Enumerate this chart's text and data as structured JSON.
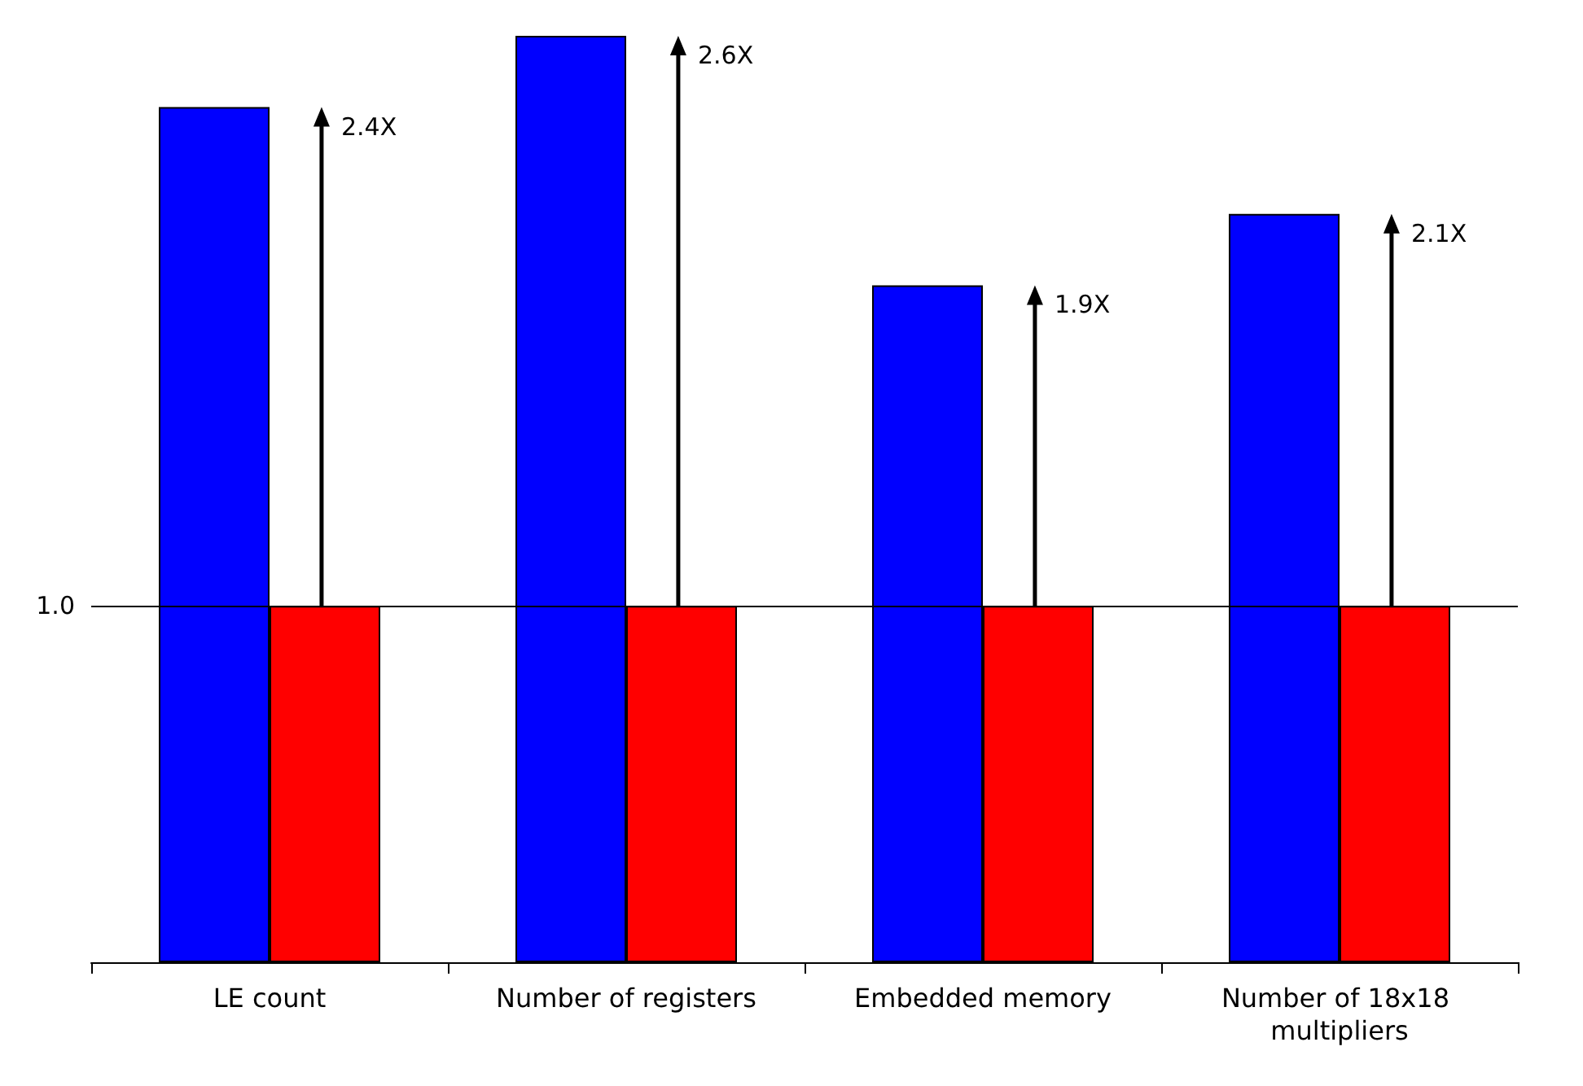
{
  "chart_data": {
    "type": "bar",
    "categories": [
      "LE count",
      "Number of registers",
      "Embedded memory",
      "Number of 18x18 multipliers"
    ],
    "series": [
      {
        "color": "#0000ff",
        "values": [
          2.4,
          2.6,
          1.9,
          2.1
        ]
      },
      {
        "color": "#ff0000",
        "values": [
          1,
          1,
          1,
          1
        ]
      }
    ],
    "annotations": [
      "2.4X",
      "2.6X",
      "1.9X",
      "2.1X"
    ],
    "ylim": [
      0,
      2.6
    ],
    "yticks": [
      {
        "value": 1,
        "label": "1.0"
      }
    ],
    "ref_lines": [
      {
        "axis": "y",
        "value": 1,
        "color": "#000000"
      }
    ],
    "grid": false
  }
}
